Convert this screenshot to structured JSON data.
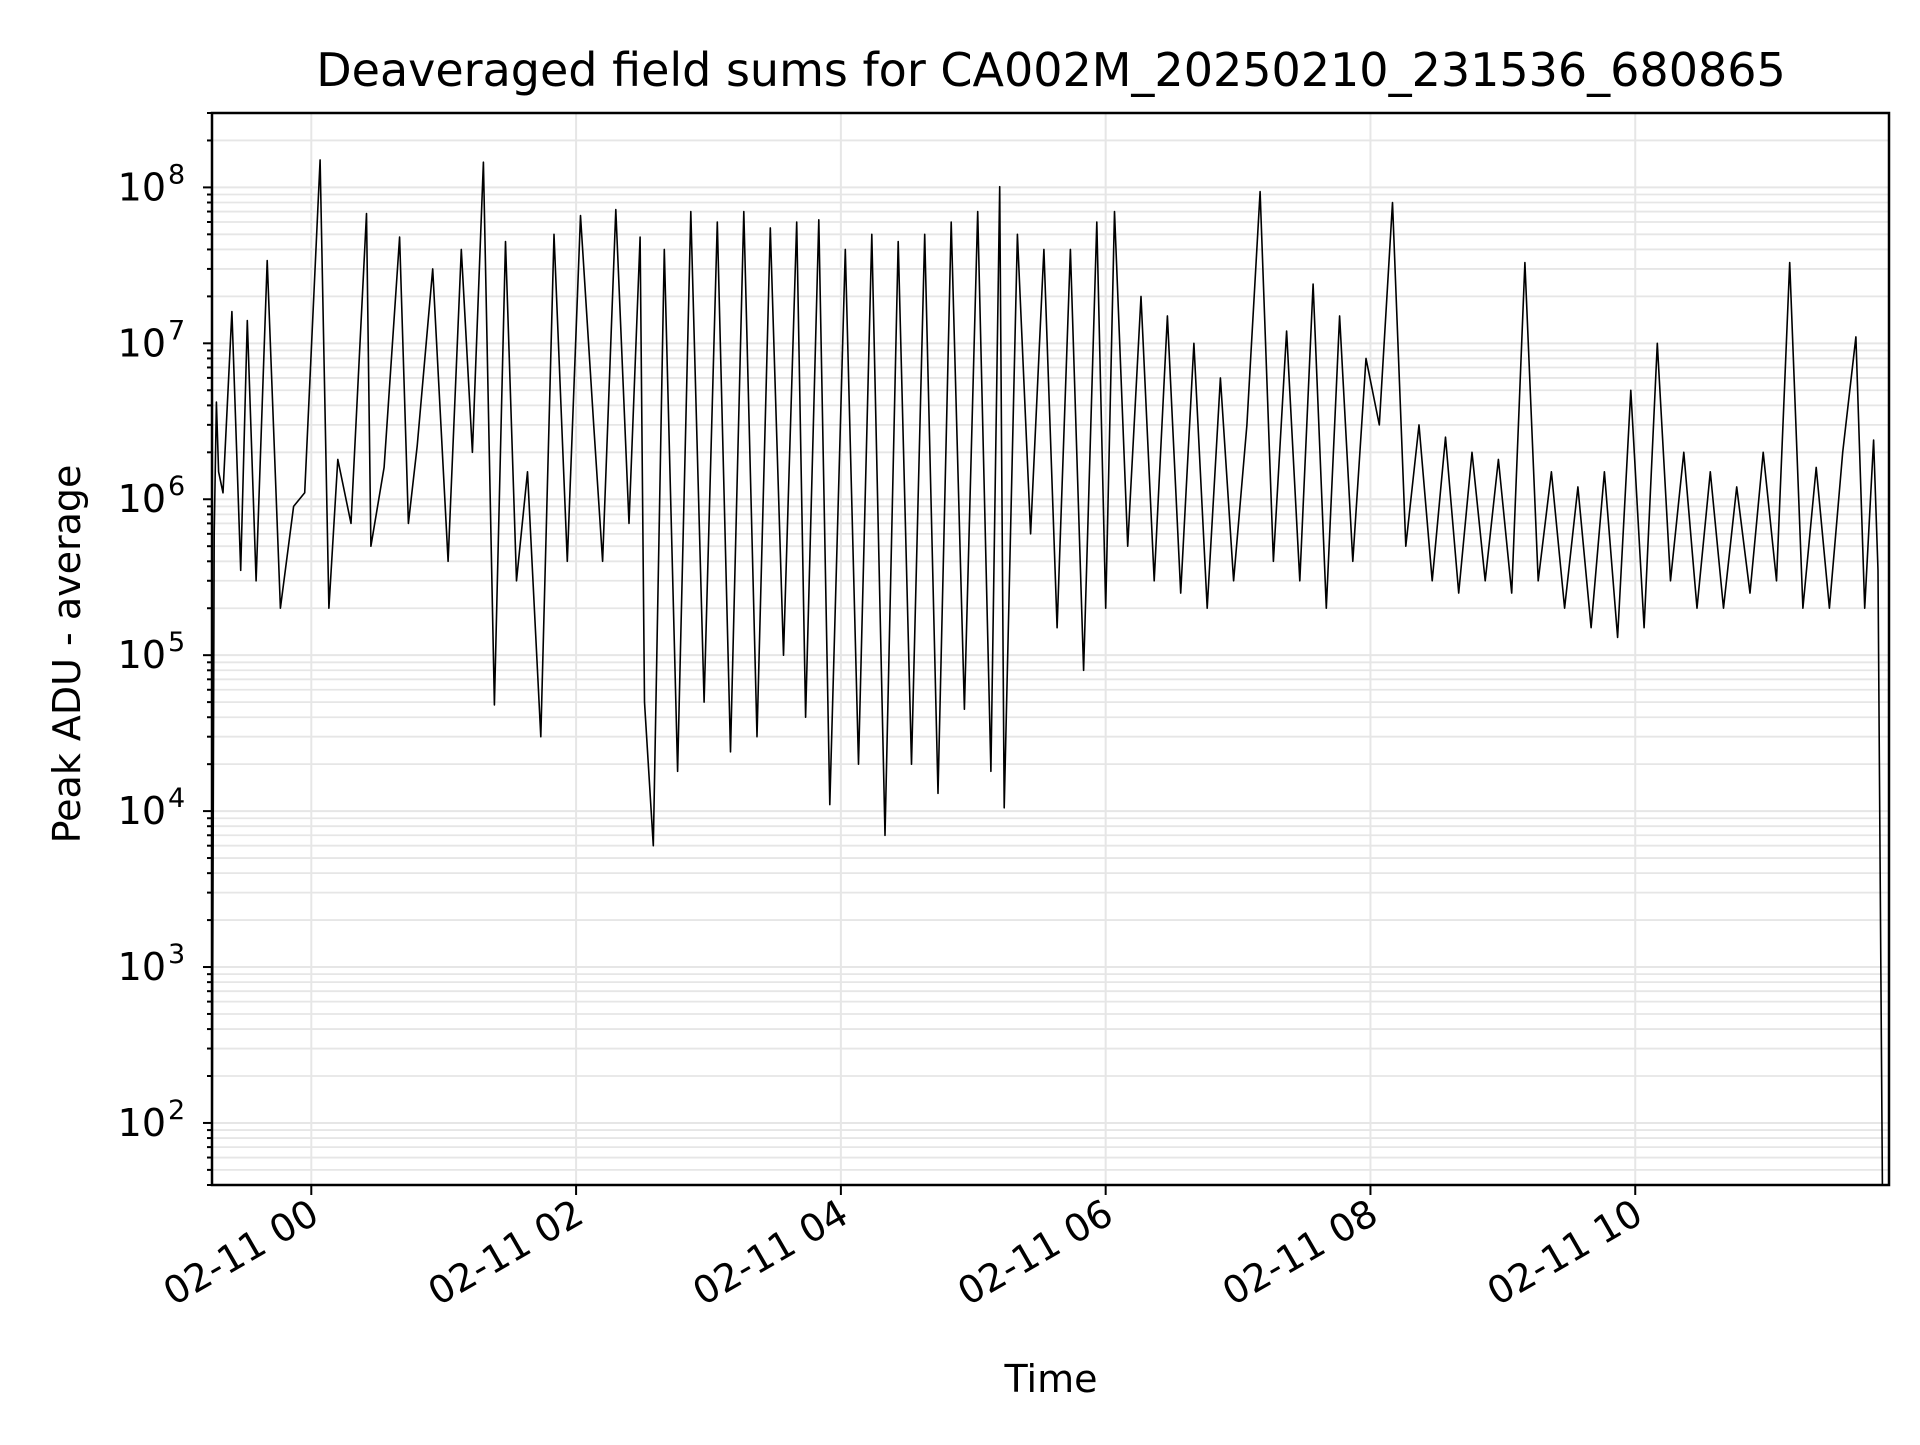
{
  "chart_data": {
    "type": "line",
    "title": "Deaveraged field sums for CA002M_20250210_231536_680865",
    "xlabel": "Time",
    "ylabel": "Peak ADU - average",
    "y_scale": "log",
    "ylim": [
      40,
      300000000
    ],
    "xlim": [
      "2025-02-10 23:15",
      "2025-02-11 11:55"
    ],
    "x_ticks": [
      {
        "value": "2025-02-11 00:00",
        "label": "02-11 00"
      },
      {
        "value": "2025-02-11 02:00",
        "label": "02-11 02"
      },
      {
        "value": "2025-02-11 04:00",
        "label": "02-11 04"
      },
      {
        "value": "2025-02-11 06:00",
        "label": "02-11 06"
      },
      {
        "value": "2025-02-11 08:00",
        "label": "02-11 08"
      },
      {
        "value": "2025-02-11 10:00",
        "label": "02-11 10"
      }
    ],
    "y_ticks": [
      {
        "value": 100,
        "base": "10",
        "exp": "2"
      },
      {
        "value": 1000,
        "base": "10",
        "exp": "3"
      },
      {
        "value": 10000,
        "base": "10",
        "exp": "4"
      },
      {
        "value": 100000,
        "base": "10",
        "exp": "5"
      },
      {
        "value": 1000000,
        "base": "10",
        "exp": "6"
      },
      {
        "value": 10000000,
        "base": "10",
        "exp": "7"
      },
      {
        "value": 100000000,
        "base": "10",
        "exp": "8"
      }
    ],
    "grid": true,
    "line_color": "#000000",
    "grid_color": "#e6e6e6",
    "series": [
      {
        "x": [
          "2025-02-10 23:15",
          "2025-02-10 23:16",
          "2025-02-10 23:17",
          "2025-02-10 23:18",
          "2025-02-10 23:20",
          "2025-02-10 23:24",
          "2025-02-10 23:28",
          "2025-02-10 23:31",
          "2025-02-10 23:35",
          "2025-02-10 23:40",
          "2025-02-10 23:46",
          "2025-02-10 23:52",
          "2025-02-10 23:57",
          "2025-02-11 00:04",
          "2025-02-11 00:08",
          "2025-02-11 00:12",
          "2025-02-11 00:18",
          "2025-02-11 00:25",
          "2025-02-11 00:27",
          "2025-02-11 00:33",
          "2025-02-11 00:40",
          "2025-02-11 00:44",
          "2025-02-11 00:48",
          "2025-02-11 00:55",
          "2025-02-11 01:02",
          "2025-02-11 01:08",
          "2025-02-11 01:13",
          "2025-02-11 01:18",
          "2025-02-11 01:23",
          "2025-02-11 01:28",
          "2025-02-11 01:33",
          "2025-02-11 01:38",
          "2025-02-11 01:44",
          "2025-02-11 01:50",
          "2025-02-11 01:56",
          "2025-02-11 02:02",
          "2025-02-11 02:08",
          "2025-02-11 02:12",
          "2025-02-11 02:18",
          "2025-02-11 02:24",
          "2025-02-11 02:29",
          "2025-02-11 02:31",
          "2025-02-11 02:35",
          "2025-02-11 02:40",
          "2025-02-11 02:46",
          "2025-02-11 02:52",
          "2025-02-11 02:58",
          "2025-02-11 03:04",
          "2025-02-11 03:10",
          "2025-02-11 03:16",
          "2025-02-11 03:22",
          "2025-02-11 03:28",
          "2025-02-11 03:34",
          "2025-02-11 03:40",
          "2025-02-11 03:44",
          "2025-02-11 03:50",
          "2025-02-11 03:55",
          "2025-02-11 04:02",
          "2025-02-11 04:08",
          "2025-02-11 04:14",
          "2025-02-11 04:20",
          "2025-02-11 04:26",
          "2025-02-11 04:32",
          "2025-02-11 04:38",
          "2025-02-11 04:44",
          "2025-02-11 04:50",
          "2025-02-11 04:56",
          "2025-02-11 05:02",
          "2025-02-11 05:08",
          "2025-02-11 05:12",
          "2025-02-11 05:14",
          "2025-02-11 05:20",
          "2025-02-11 05:26",
          "2025-02-11 05:32",
          "2025-02-11 05:38",
          "2025-02-11 05:44",
          "2025-02-11 05:50",
          "2025-02-11 05:56",
          "2025-02-11 06:00",
          "2025-02-11 06:04",
          "2025-02-11 06:10",
          "2025-02-11 06:16",
          "2025-02-11 06:22",
          "2025-02-11 06:28",
          "2025-02-11 06:34",
          "2025-02-11 06:40",
          "2025-02-11 06:46",
          "2025-02-11 06:52",
          "2025-02-11 06:58",
          "2025-02-11 07:04",
          "2025-02-11 07:10",
          "2025-02-11 07:16",
          "2025-02-11 07:22",
          "2025-02-11 07:28",
          "2025-02-11 07:34",
          "2025-02-11 07:40",
          "2025-02-11 07:46",
          "2025-02-11 07:52",
          "2025-02-11 07:58",
          "2025-02-11 08:04",
          "2025-02-11 08:10",
          "2025-02-11 08:16",
          "2025-02-11 08:22",
          "2025-02-11 08:28",
          "2025-02-11 08:34",
          "2025-02-11 08:40",
          "2025-02-11 08:46",
          "2025-02-11 08:52",
          "2025-02-11 08:58",
          "2025-02-11 09:04",
          "2025-02-11 09:10",
          "2025-02-11 09:16",
          "2025-02-11 09:22",
          "2025-02-11 09:28",
          "2025-02-11 09:34",
          "2025-02-11 09:40",
          "2025-02-11 09:46",
          "2025-02-11 09:52",
          "2025-02-11 09:58",
          "2025-02-11 10:04",
          "2025-02-11 10:10",
          "2025-02-11 10:16",
          "2025-02-11 10:22",
          "2025-02-11 10:28",
          "2025-02-11 10:34",
          "2025-02-11 10:40",
          "2025-02-11 10:46",
          "2025-02-11 10:52",
          "2025-02-11 10:58",
          "2025-02-11 11:04",
          "2025-02-11 11:10",
          "2025-02-11 11:16",
          "2025-02-11 11:22",
          "2025-02-11 11:28",
          "2025-02-11 11:34",
          "2025-02-11 11:40",
          "2025-02-11 11:44",
          "2025-02-11 11:48",
          "2025-02-11 11:50",
          "2025-02-11 11:52"
        ],
        "y": [
          40,
          600000,
          4200000,
          1500000,
          1100000,
          16000000,
          350000,
          14000000,
          300000,
          34000000,
          200000,
          900000,
          1100000,
          150000000,
          200000,
          1800000,
          700000,
          68000000,
          500000,
          1600000,
          48000000,
          700000,
          2200000,
          30000000,
          400000,
          40000000,
          2000000,
          145000000,
          48000,
          45000000,
          300000,
          1500000,
          30000,
          50000000,
          400000,
          66000000,
          3000000,
          400000,
          72000000,
          700000,
          48000000,
          50000,
          6000,
          40000000,
          18000,
          70000000,
          50000,
          60000000,
          24000,
          70000000,
          30000,
          55000000,
          100000,
          60000000,
          40000,
          62000000,
          11000,
          40000000,
          20000,
          50000000,
          7000,
          45000000,
          20000,
          50000000,
          13000,
          60000000,
          45000,
          70000000,
          18000,
          101000000,
          10500,
          50000000,
          600000,
          40000000,
          150000,
          40000000,
          80000,
          60000000,
          200000,
          70000000,
          500000,
          20000000,
          300000,
          15000000,
          250000,
          10000000,
          200000,
          6000000,
          300000,
          3000000,
          94000000,
          400000,
          12000000,
          300000,
          24000000,
          200000,
          15000000,
          400000,
          8000000,
          3000000,
          80000000,
          500000,
          3000000,
          300000,
          2500000,
          250000,
          2000000,
          300000,
          1800000,
          250000,
          33000000,
          300000,
          1500000,
          200000,
          1200000,
          150000,
          1500000,
          130000,
          5000000,
          150000,
          10000000,
          300000,
          2000000,
          200000,
          1500000,
          200000,
          1200000,
          250000,
          2000000,
          300000,
          33000000,
          200000,
          1600000,
          200000,
          2000000,
          11000000,
          200000,
          2400000,
          350000,
          40
        ]
      }
    ]
  }
}
